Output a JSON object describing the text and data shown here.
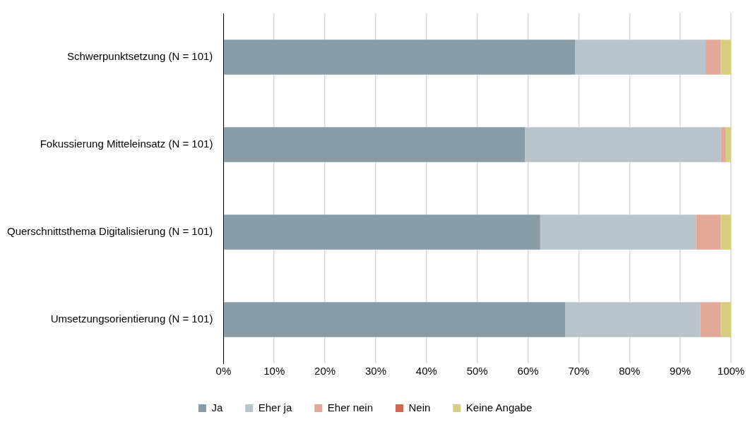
{
  "chart_data": {
    "type": "bar",
    "orientation": "horizontal",
    "stacked": true,
    "categories": [
      "Schwerpunktsetzung (N = 101)",
      "Fokussierung Mitteleinsatz (N = 101)",
      "Querschnittsthema Digitalisierung (N = 101)",
      "Umsetzungsorientierung (N = 101)"
    ],
    "series": [
      {
        "name": "Ja",
        "color": "#879ca7",
        "values": [
          69.3,
          59.4,
          62.4,
          67.3
        ]
      },
      {
        "name": "Eher ja",
        "color": "#b8c4ca",
        "values": [
          25.7,
          38.6,
          30.7,
          26.7
        ]
      },
      {
        "name": "Eher nein",
        "color": "#e2a898",
        "values": [
          3.0,
          1.0,
          4.9,
          4.0
        ]
      },
      {
        "name": "Nein",
        "color": "#d0694e",
        "values": [
          0,
          0,
          0,
          0
        ]
      },
      {
        "name": "Keine Angabe",
        "color": "#d6cd80",
        "values": [
          2.0,
          1.0,
          2.0,
          2.0
        ]
      }
    ],
    "xlim": [
      0,
      100
    ],
    "xticks": [
      {
        "value": 0,
        "label": "0%"
      },
      {
        "value": 10,
        "label": "10%"
      },
      {
        "value": 20,
        "label": "20%"
      },
      {
        "value": 30,
        "label": "30%"
      },
      {
        "value": 40,
        "label": "40%"
      },
      {
        "value": 50,
        "label": "50%"
      },
      {
        "value": 60,
        "label": "60%"
      },
      {
        "value": 70,
        "label": "70%"
      },
      {
        "value": 80,
        "label": "80%"
      },
      {
        "value": 90,
        "label": "90%"
      },
      {
        "value": 100,
        "label": "100%"
      }
    ],
    "grid": "x",
    "legend": "bottom"
  }
}
